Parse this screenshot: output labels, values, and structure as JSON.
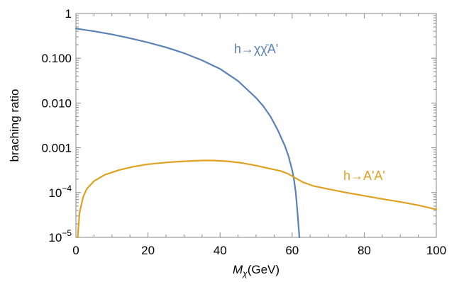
{
  "chart_data": {
    "type": "line",
    "title": "",
    "xlabel": "M",
    "xlabel_subscript": "χ",
    "xlabel_unit": "(GeV)",
    "ylabel": "braching ratio",
    "xlim": [
      0,
      100
    ],
    "ylim": [
      1e-05,
      1
    ],
    "yscale": "log",
    "grid": false,
    "x_ticks": [
      {
        "value": 0,
        "label": "0"
      },
      {
        "value": 20,
        "label": "20"
      },
      {
        "value": 40,
        "label": "40"
      },
      {
        "value": 60,
        "label": "60"
      },
      {
        "value": 80,
        "label": "80"
      },
      {
        "value": 100,
        "label": "100"
      }
    ],
    "y_ticks": [
      {
        "value": 1,
        "label": "1",
        "sup": ""
      },
      {
        "value": 0.1,
        "label": "0.100",
        "sup": ""
      },
      {
        "value": 0.01,
        "label": "0.010",
        "sup": ""
      },
      {
        "value": 0.001,
        "label": "0.001",
        "sup": ""
      },
      {
        "value": 0.0001,
        "label": "10",
        "sup": "−4"
      },
      {
        "value": 1e-05,
        "label": "10",
        "sup": "−5"
      }
    ],
    "series": [
      {
        "name": "h→χχ̄A'",
        "color": "#5b82b6",
        "label_pos": {
          "x": 50,
          "y": 0.13
        },
        "points": [
          [
            0,
            0.46
          ],
          [
            5,
            0.4
          ],
          [
            10,
            0.34
          ],
          [
            15,
            0.28
          ],
          [
            20,
            0.225
          ],
          [
            25,
            0.175
          ],
          [
            30,
            0.13
          ],
          [
            35,
            0.09
          ],
          [
            40,
            0.058
          ],
          [
            45,
            0.031
          ],
          [
            50,
            0.013
          ],
          [
            52,
            0.0085
          ],
          [
            54,
            0.005
          ],
          [
            56,
            0.0025
          ],
          [
            58,
            0.0011
          ],
          [
            59,
            0.00065
          ],
          [
            60,
            0.00032
          ],
          [
            60.5,
            0.0002
          ],
          [
            61,
            0.0001
          ],
          [
            61.5,
            3.5e-05
          ],
          [
            62,
            1e-05
          ]
        ]
      },
      {
        "name": "h→A'A'",
        "color": "#e0a020",
        "label_pos": {
          "x": 80,
          "y": 0.00019
        },
        "points": [
          [
            0.5,
            1e-05
          ],
          [
            1,
            3.5e-05
          ],
          [
            2,
            8e-05
          ],
          [
            3,
            0.00012
          ],
          [
            5,
            0.00018
          ],
          [
            8,
            0.00025
          ],
          [
            12,
            0.00032
          ],
          [
            16,
            0.00038
          ],
          [
            20,
            0.00043
          ],
          [
            25,
            0.00047
          ],
          [
            30,
            0.0005
          ],
          [
            35,
            0.00052
          ],
          [
            38,
            0.00052
          ],
          [
            42,
            0.0005
          ],
          [
            46,
            0.00046
          ],
          [
            50,
            0.0004
          ],
          [
            54,
            0.00034
          ],
          [
            57,
            0.0003
          ],
          [
            59,
            0.00026
          ],
          [
            61,
            0.00021
          ],
          [
            63,
            0.00017
          ],
          [
            66,
            0.00014
          ],
          [
            70,
            0.00012
          ],
          [
            75,
            0.0001
          ],
          [
            80,
            8.5e-05
          ],
          [
            85,
            7.2e-05
          ],
          [
            90,
            6.2e-05
          ],
          [
            95,
            5.2e-05
          ],
          [
            100,
            4.2e-05
          ]
        ]
      }
    ]
  }
}
